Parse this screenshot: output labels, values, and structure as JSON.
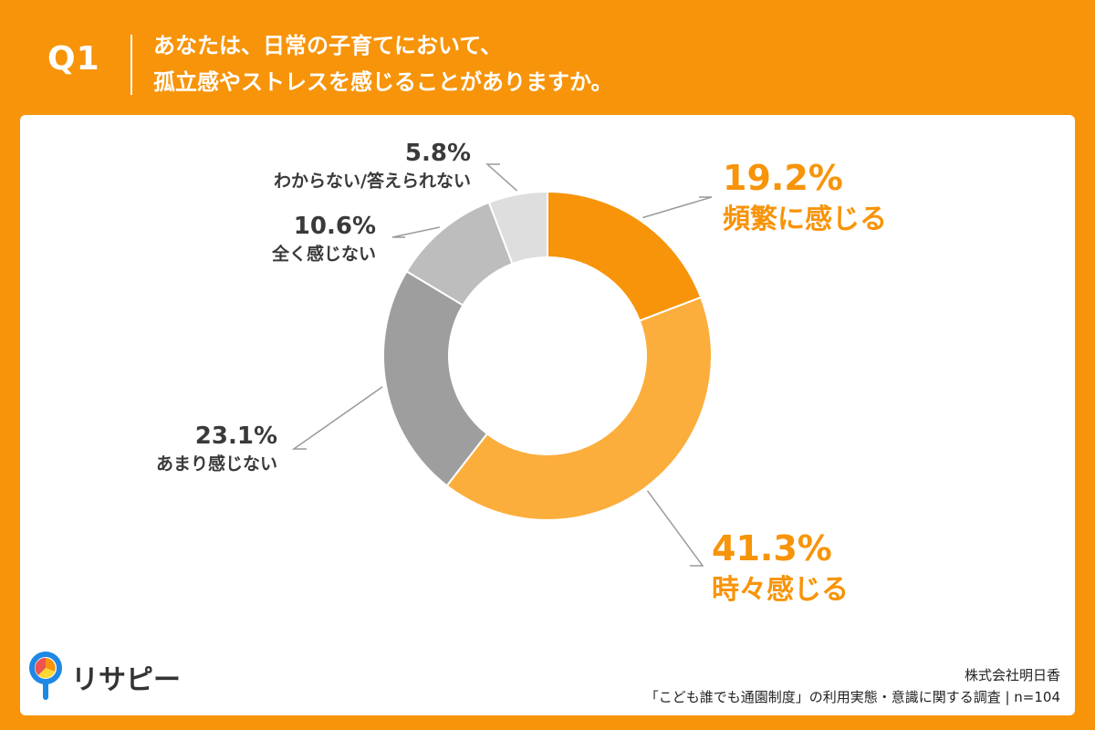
{
  "header": {
    "question_number": "Q1",
    "question_line1": "あなたは、日常の子育てにおいて、",
    "question_line2": "孤立感やストレスを感じることがありますか。"
  },
  "branding": {
    "logo_text": "リサピー",
    "icon": "search-pin-icon"
  },
  "source": {
    "line1": "株式会社明日香",
    "line2": "「こども誰でも通園制度」の利用実態・意識に関する調査 | n=104"
  },
  "colors": {
    "header_bg": "#F7940A",
    "accent_text": "#F7940A",
    "dark_text": "#3A3A3A"
  },
  "chart_data": {
    "type": "pie",
    "donut": true,
    "start_angle_deg": 0,
    "direction": "clockwise",
    "slices": [
      {
        "label": "頻繁に感じる",
        "value": 19.2,
        "value_label": "19.2%",
        "color": "#F7940A",
        "highlight": true
      },
      {
        "label": "時々感じる",
        "value": 41.3,
        "value_label": "41.3%",
        "color": "#FBAE3C",
        "highlight": true
      },
      {
        "label": "あまり感じない",
        "value": 23.1,
        "value_label": "23.1%",
        "color": "#9E9E9E",
        "highlight": false
      },
      {
        "label": "全く感じない",
        "value": 10.6,
        "value_label": "10.6%",
        "color": "#BDBDBD",
        "highlight": false
      },
      {
        "label": "わからない/答えられない",
        "value": 5.8,
        "value_label": "5.8%",
        "color": "#DEDEDE",
        "highlight": false
      }
    ]
  }
}
